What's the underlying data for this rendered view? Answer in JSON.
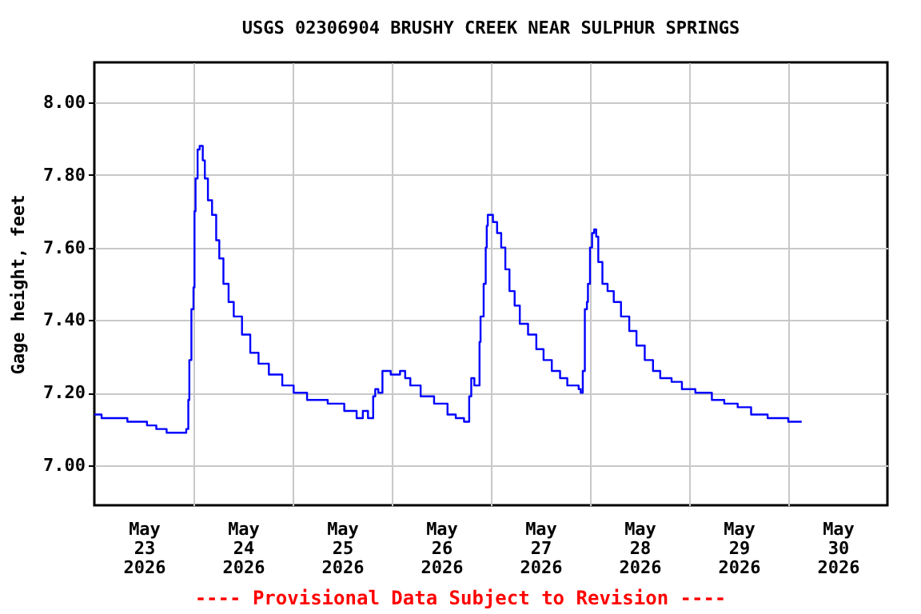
{
  "chart_data": {
    "type": "step",
    "title": "USGS 02306904 BRUSHY CREEK NEAR SULPHUR SPRINGS",
    "ylabel": "Gage height, feet",
    "annotations": [
      "---- Provisional Data Subject to Revision ----"
    ],
    "x": [
      "2026-05-23T00:00",
      "2026-05-23T01:45",
      "2026-05-23T08:00",
      "2026-05-23T12:45",
      "2026-05-23T15:00",
      "2026-05-23T17:30",
      "2026-05-23T21:45",
      "2026-05-23T22:15",
      "2026-05-23T22:45",
      "2026-05-23T23:00",
      "2026-05-23T23:30",
      "2026-05-24T00:00",
      "2026-05-24T00:15",
      "2026-05-24T00:30",
      "2026-05-24T01:00",
      "2026-05-24T01:30",
      "2026-05-24T01:45",
      "2026-05-24T02:15",
      "2026-05-24T02:45",
      "2026-05-24T03:30",
      "2026-05-24T04:30",
      "2026-05-24T05:30",
      "2026-05-24T06:15",
      "2026-05-24T07:15",
      "2026-05-24T08:30",
      "2026-05-24T09:45",
      "2026-05-24T11:45",
      "2026-05-24T13:45",
      "2026-05-24T15:45",
      "2026-05-24T18:15",
      "2026-05-24T21:30",
      "2026-05-25T00:15",
      "2026-05-25T03:30",
      "2026-05-25T08:30",
      "2026-05-25T12:30",
      "2026-05-25T15:30",
      "2026-05-25T17:00",
      "2026-05-25T18:15",
      "2026-05-25T19:00",
      "2026-05-25T19:30",
      "2026-05-25T20:00",
      "2026-05-25T20:45",
      "2026-05-25T21:45",
      "2026-05-25T23:15",
      "2026-05-25T23:45",
      "2026-05-26T01:00",
      "2026-05-26T02:00",
      "2026-05-26T03:15",
      "2026-05-26T04:30",
      "2026-05-26T07:00",
      "2026-05-26T10:15",
      "2026-05-26T13:30",
      "2026-05-26T15:30",
      "2026-05-26T17:30",
      "2026-05-26T18:15",
      "2026-05-26T18:45",
      "2026-05-26T19:15",
      "2026-05-26T20:00",
      "2026-05-26T20:30",
      "2026-05-26T21:15",
      "2026-05-26T21:30",
      "2026-05-26T22:15",
      "2026-05-26T22:45",
      "2026-05-26T23:00",
      "2026-05-26T23:15",
      "2026-05-26T23:45",
      "2026-05-27T00:30",
      "2026-05-27T01:30",
      "2026-05-27T02:30",
      "2026-05-27T03:30",
      "2026-05-27T04:30",
      "2026-05-27T05:45",
      "2026-05-27T07:00",
      "2026-05-27T09:00",
      "2026-05-27T11:00",
      "2026-05-27T12:45",
      "2026-05-27T14:45",
      "2026-05-27T16:45",
      "2026-05-27T18:30",
      "2026-05-27T21:15",
      "2026-05-27T21:45",
      "2026-05-27T22:15",
      "2026-05-27T22:45",
      "2026-05-27T23:15",
      "2026-05-27T23:30",
      "2026-05-28T00:00",
      "2026-05-28T00:30",
      "2026-05-28T01:00",
      "2026-05-28T01:30",
      "2026-05-28T02:00",
      "2026-05-28T03:00",
      "2026-05-28T04:15",
      "2026-05-28T05:45",
      "2026-05-28T07:30",
      "2026-05-28T09:30",
      "2026-05-28T11:15",
      "2026-05-28T13:15",
      "2026-05-28T15:15",
      "2026-05-28T17:00",
      "2026-05-28T19:45",
      "2026-05-28T22:15",
      "2026-05-29T01:30",
      "2026-05-29T05:30",
      "2026-05-29T08:30",
      "2026-05-29T11:45",
      "2026-05-29T15:00",
      "2026-05-29T19:00",
      "2026-05-29T23:45",
      "2026-05-30T00:00",
      "2026-05-30T03:15"
    ],
    "series": [
      {
        "color": "#0000ff",
        "values": [
          7.14,
          7.13,
          7.12,
          7.11,
          7.1,
          7.09,
          7.09,
          7.1,
          7.18,
          7.29,
          7.43,
          7.49,
          7.7,
          7.79,
          7.87,
          7.88,
          7.88,
          7.84,
          7.79,
          7.73,
          7.69,
          7.62,
          7.57,
          7.5,
          7.45,
          7.41,
          7.36,
          7.31,
          7.28,
          7.25,
          7.22,
          7.2,
          7.18,
          7.17,
          7.15,
          7.13,
          7.15,
          7.13,
          7.13,
          7.19,
          7.21,
          7.2,
          7.26,
          7.26,
          7.25,
          7.25,
          7.26,
          7.24,
          7.22,
          7.19,
          7.17,
          7.14,
          7.13,
          7.12,
          7.12,
          7.19,
          7.24,
          7.22,
          7.22,
          7.34,
          7.41,
          7.5,
          7.6,
          7.66,
          7.69,
          7.69,
          7.67,
          7.64,
          7.6,
          7.54,
          7.48,
          7.44,
          7.39,
          7.36,
          7.32,
          7.29,
          7.26,
          7.24,
          7.22,
          7.21,
          7.2,
          7.26,
          7.43,
          7.45,
          7.5,
          7.6,
          7.64,
          7.65,
          7.63,
          7.56,
          7.5,
          7.48,
          7.45,
          7.41,
          7.37,
          7.33,
          7.29,
          7.26,
          7.24,
          7.23,
          7.21,
          7.2,
          7.18,
          7.17,
          7.16,
          7.14,
          7.13,
          7.13,
          7.12,
          7.12
        ]
      }
    ],
    "xlim": [
      "2026-05-23T00:00",
      "2026-05-31T00:00"
    ],
    "xticks": [
      {
        "value": "2026-05-23T12:00",
        "label": "May 23 2026"
      },
      {
        "value": "2026-05-24T00:00",
        "label": null
      },
      {
        "value": "2026-05-24T12:00",
        "label": "May 24 2026"
      },
      {
        "value": "2026-05-25T00:00",
        "label": null
      },
      {
        "value": "2026-05-25T12:00",
        "label": "May 25 2026"
      },
      {
        "value": "2026-05-26T00:00",
        "label": null
      },
      {
        "value": "2026-05-26T12:00",
        "label": "May 26 2026"
      },
      {
        "value": "2026-05-27T00:00",
        "label": null
      },
      {
        "value": "2026-05-27T12:00",
        "label": "May 27 2026"
      },
      {
        "value": "2026-05-28T00:00",
        "label": null
      },
      {
        "value": "2026-05-28T12:00",
        "label": "May 28 2026"
      },
      {
        "value": "2026-05-29T00:00",
        "label": null
      },
      {
        "value": "2026-05-29T12:00",
        "label": "May 29 2026"
      },
      {
        "value": "2026-05-30T00:00",
        "label": null
      },
      {
        "value": "2026-05-30T12:00",
        "label": "May 30 2026"
      }
    ],
    "ylim": [
      6.89,
      8.11
    ],
    "yticks": [
      {
        "value": 7,
        "label": "7.00"
      },
      {
        "value": 7.2,
        "label": "7.20"
      },
      {
        "value": 7.4,
        "label": "7.40"
      },
      {
        "value": 7.6,
        "label": "7.60"
      },
      {
        "value": 7.8,
        "label": "7.80"
      },
      {
        "value": 8,
        "label": "8.00"
      }
    ],
    "grid": true,
    "legend": false,
    "marker": "none",
    "line_style": "solid"
  }
}
